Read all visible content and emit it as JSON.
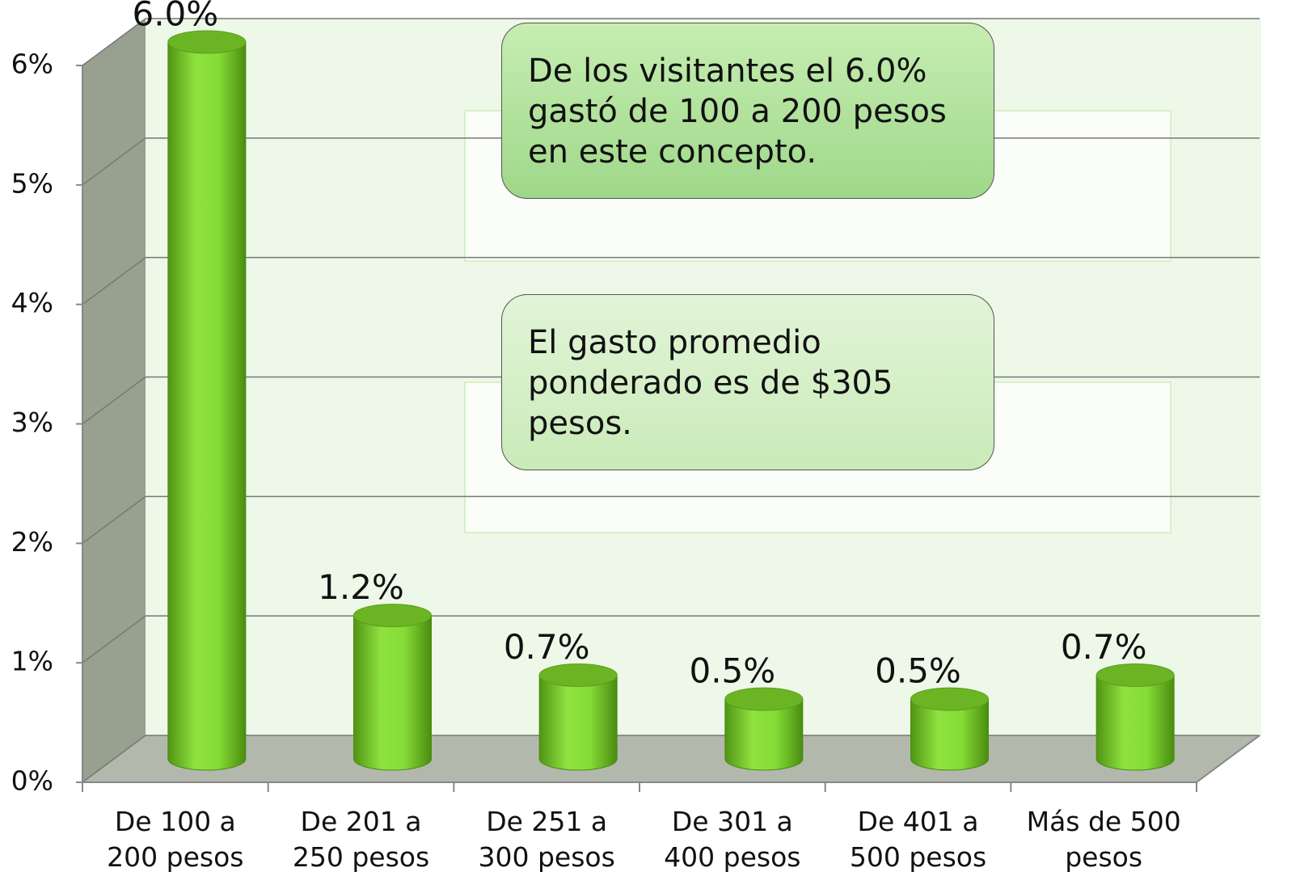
{
  "chart_data": {
    "type": "bar3d",
    "categories": [
      "De 100 a\n200 pesos",
      "De 201 a\n250 pesos",
      "De 251 a\n300 pesos",
      "De 301 a\n400 pesos",
      "De 401 a\n500 pesos",
      "Más de 500\npesos"
    ],
    "values": [
      6.0,
      1.2,
      0.7,
      0.5,
      0.5,
      0.7
    ],
    "value_labels": [
      "6.0%",
      "1.2%",
      "0.7%",
      "0.5%",
      "0.5%",
      "0.7%"
    ],
    "color": "#7fd630",
    "ylim": [
      0,
      6
    ],
    "yticks": [
      {
        "value": 0,
        "label": "0%"
      },
      {
        "value": 1,
        "label": "1%"
      },
      {
        "value": 2,
        "label": "2%"
      },
      {
        "value": 3,
        "label": "3%"
      },
      {
        "value": 4,
        "label": "4%"
      },
      {
        "value": 5,
        "label": "5%"
      },
      {
        "value": 6,
        "label": "6%"
      }
    ],
    "grid": true,
    "annotations": [
      "De los visitantes el 6.0%\ngastó de 100 a 200 pesos\nen este concepto.",
      "El gasto promedio\nponderado es de $305\npesos."
    ]
  }
}
